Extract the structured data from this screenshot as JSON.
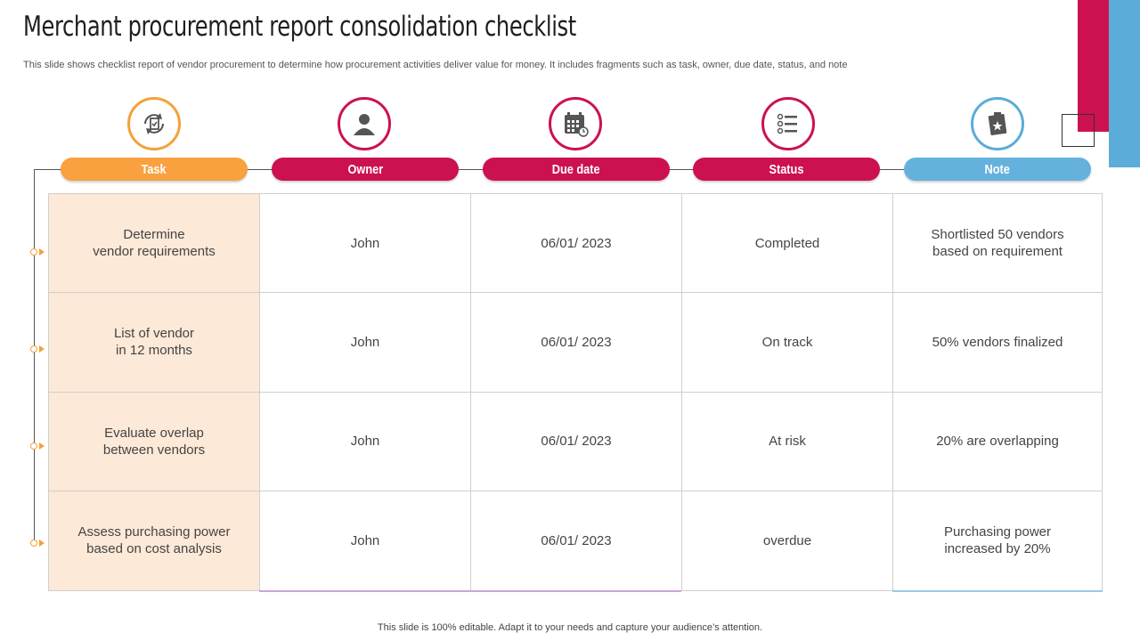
{
  "title": "Merchant procurement report consolidation checklist",
  "subtitle": "This slide shows checklist report of vendor procurement to determine how procurement activities deliver value for  money. It includes fragments  such as task, owner, due date, status, and note",
  "columns": [
    {
      "label": "Task",
      "icon": "task-refresh-icon"
    },
    {
      "label": "Owner",
      "icon": "user-icon"
    },
    {
      "label": "Due date",
      "icon": "calendar-icon"
    },
    {
      "label": "Status",
      "icon": "checklist-icon"
    },
    {
      "label": "Note",
      "icon": "clipboard-star-icon"
    }
  ],
  "rows": [
    {
      "task": "Determine\nvendor requirements",
      "owner": "John",
      "due": "06/01/ 2023",
      "status": "Completed",
      "note": "Shortlisted 50 vendors based on requirement"
    },
    {
      "task": "List of vendor\nin 12 months",
      "owner": "John",
      "due": "06/01/ 2023",
      "status": "On track",
      "note": "50% vendors finalized"
    },
    {
      "task": "Evaluate overlap\nbetween vendors",
      "owner": "John",
      "due": "06/01/ 2023",
      "status": "At risk",
      "note": "20% are overlapping"
    },
    {
      "task": "Assess purchasing power\nbased on cost analysis",
      "owner": "John",
      "due": "06/01/ 2023",
      "status": "overdue",
      "note": "Purchasing power\nincreased by 20%"
    }
  ],
  "footer": "This slide is 100% editable. Adapt it to your needs and capture your audience’s attention.",
  "colors": {
    "orange": "#f9a03f",
    "crimson": "#cc1150",
    "blue": "#65b1dd",
    "task_bg": "#fde9d7"
  }
}
